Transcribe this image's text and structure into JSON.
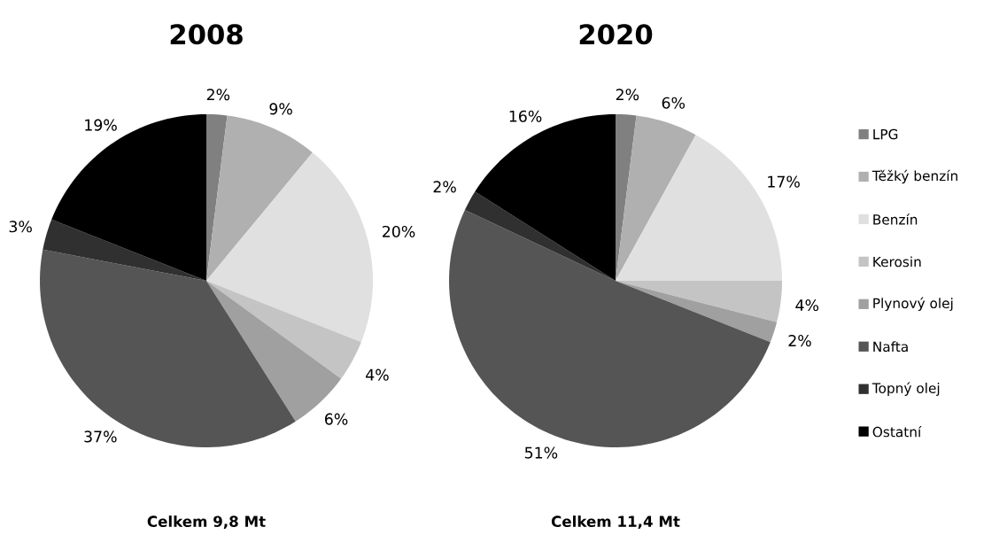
{
  "chart_data": [
    {
      "type": "pie",
      "title": "2008",
      "values": [
        2,
        9,
        20,
        4,
        6,
        37,
        3,
        19
      ],
      "colors": [
        "#808080",
        "#b0b0b0",
        "#e0e0e0",
        "#c4c4c4",
        "#a0a0a0",
        "#555555",
        "#303030",
        "#000000"
      ],
      "value_labels": [
        "2%",
        "9%",
        "20%",
        "4%",
        "6%",
        "37%",
        "3%",
        "19%"
      ],
      "annotations": [
        "Celkem 9,8 Mt"
      ],
      "legend": false
    },
    {
      "type": "pie",
      "title": "2020",
      "categories": [
        "LPG",
        "Těžký benzín",
        "Benzín",
        "Kerosin",
        "Plynový olej",
        "Nafta",
        "Topný olej",
        "Ostatní"
      ],
      "values": [
        2,
        6,
        17,
        4,
        2,
        51,
        2,
        16
      ],
      "colors": [
        "#808080",
        "#b0b0b0",
        "#e0e0e0",
        "#c4c4c4",
        "#a0a0a0",
        "#555555",
        "#303030",
        "#000000"
      ],
      "value_labels": [
        "2%",
        "6%",
        "17%",
        "4%",
        "2%",
        "51%",
        "2%",
        "16%"
      ],
      "annotations": [
        "Celkem 11,4 Mt"
      ],
      "legend": "right"
    }
  ]
}
